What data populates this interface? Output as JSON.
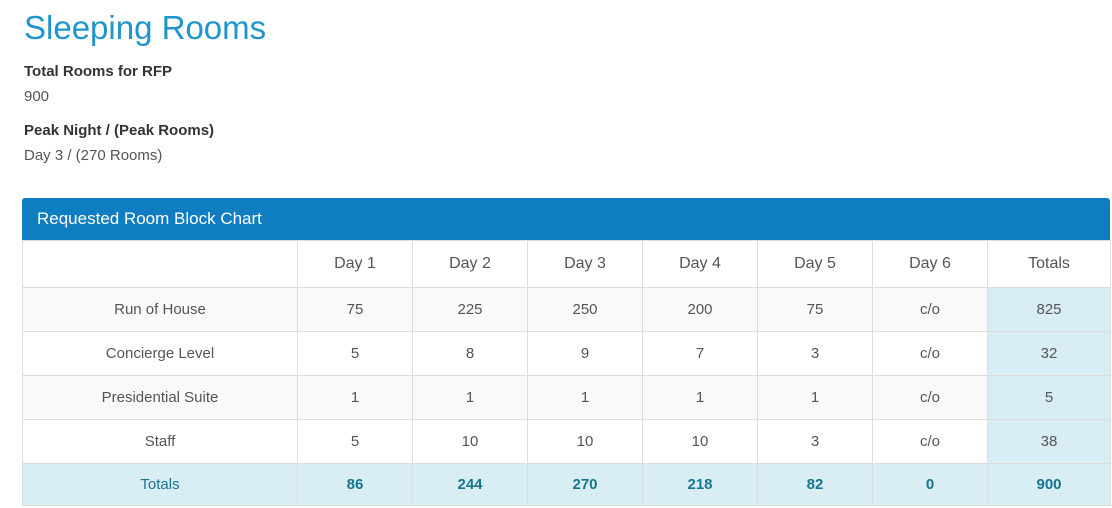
{
  "page": {
    "title": "Sleeping Rooms",
    "fields": [
      {
        "label": "Total Rooms for RFP",
        "value": "900"
      },
      {
        "label": "Peak Night / (Peak Rooms)",
        "value": "Day 3 / (270 Rooms)"
      }
    ]
  },
  "panel": {
    "title": "Requested Room Block Chart"
  },
  "table": {
    "columns": [
      "",
      "Day 1",
      "Day 2",
      "Day 3",
      "Day 4",
      "Day 5",
      "Day 6",
      "Totals"
    ],
    "rows": [
      {
        "label": "Run of House",
        "values": [
          "75",
          "225",
          "250",
          "200",
          "75",
          "c/o"
        ],
        "total": "825"
      },
      {
        "label": "Concierge Level",
        "values": [
          "5",
          "8",
          "9",
          "7",
          "3",
          "c/o"
        ],
        "total": "32"
      },
      {
        "label": "Presidential Suite",
        "values": [
          "1",
          "1",
          "1",
          "1",
          "1",
          "c/o"
        ],
        "total": "5"
      },
      {
        "label": "Staff",
        "values": [
          "5",
          "10",
          "10",
          "10",
          "3",
          "c/o"
        ],
        "total": "38"
      }
    ],
    "totals_row": {
      "label": "Totals",
      "values": [
        "86",
        "244",
        "270",
        "218",
        "82",
        "0"
      ],
      "total": "900"
    }
  },
  "colors": {
    "title_blue": "#2095cd",
    "panel_header_blue": "#0f7dc2",
    "totals_bg": "#d9edf5",
    "totals_text": "#16768f"
  }
}
